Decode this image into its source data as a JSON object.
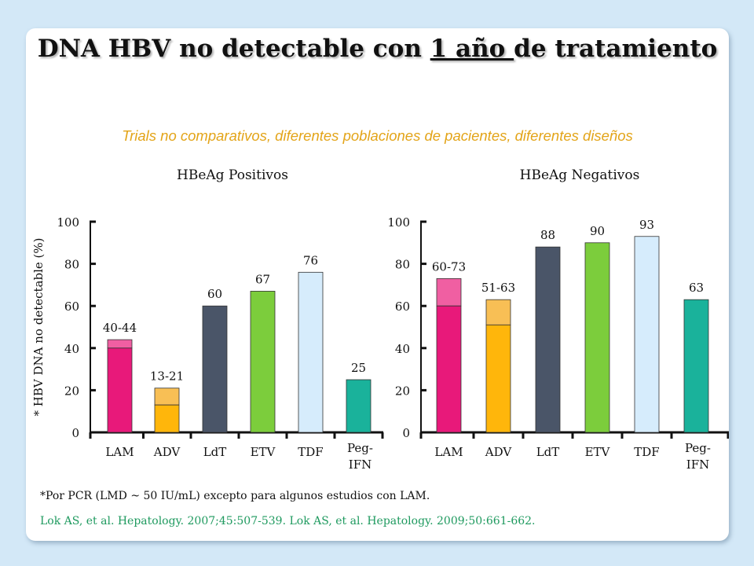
{
  "title": {
    "part1": "DNA HBV no detectable con ",
    "underlined": "1 año ",
    "part2": "de tratamiento"
  },
  "subtitle": "Trials no comparativos, diferentes poblaciones de pacientes, diferentes diseños",
  "footnote": "*Por PCR  (LMD ~ 50 IU/mL) excepto para algunos estudios con LAM.",
  "citation": "Lok AS, et al. Hepatology. 2007;45:507-539. Lok AS, et al. Hepatology. 2009;50:661-662.",
  "colors": {
    "LAM": "#e8197a",
    "LAM_light": "#f05fa2",
    "ADV": "#ffb60b",
    "ADV_light": "#f8bf55",
    "LdT": "#4a5568",
    "ETV": "#7ccd3c",
    "TDF": "#d6ecfc",
    "Peg-IFN": "#1ab29b"
  },
  "chart_data": [
    {
      "type": "bar",
      "title": "HBeAg Positivos",
      "ylabel": "* HBV DNA no detectable (%)",
      "ylim": [
        0,
        100
      ],
      "yticks": [
        "0",
        "20",
        "40",
        "60",
        "80",
        "100"
      ],
      "categories": [
        "LAM",
        "ADV",
        "LdT",
        "ETV",
        "TDF",
        "Peg-IFN"
      ],
      "bars": [
        {
          "category": "LAM",
          "low": 40,
          "high": 44,
          "label": "40-44"
        },
        {
          "category": "ADV",
          "low": 13,
          "high": 21,
          "label": "13-21"
        },
        {
          "category": "LdT",
          "value": 60,
          "label": "60"
        },
        {
          "category": "ETV",
          "value": 67,
          "label": "67"
        },
        {
          "category": "TDF",
          "value": 76,
          "label": "76"
        },
        {
          "category": "Peg-IFN",
          "value": 25,
          "label": "25"
        }
      ]
    },
    {
      "type": "bar",
      "title": "HBeAg Negativos",
      "ylabel": "",
      "ylim": [
        0,
        100
      ],
      "yticks": [
        "0",
        "20",
        "40",
        "60",
        "80",
        "100"
      ],
      "categories": [
        "LAM",
        "ADV",
        "LdT",
        "ETV",
        "TDF",
        "Peg-IFN"
      ],
      "bars": [
        {
          "category": "LAM",
          "low": 60,
          "high": 73,
          "label": "60-73"
        },
        {
          "category": "ADV",
          "low": 51,
          "high": 63,
          "label": "51-63"
        },
        {
          "category": "LdT",
          "value": 88,
          "label": "88"
        },
        {
          "category": "ETV",
          "value": 90,
          "label": "90"
        },
        {
          "category": "TDF",
          "value": 93,
          "label": "93"
        },
        {
          "category": "Peg-IFN",
          "value": 63,
          "label": "63"
        }
      ]
    }
  ]
}
